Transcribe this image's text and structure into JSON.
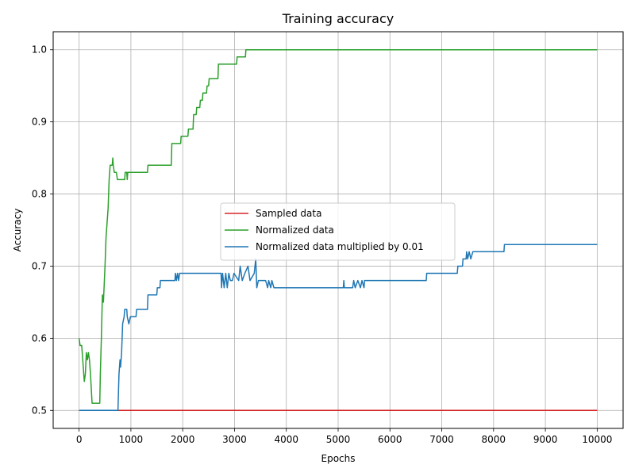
{
  "chart_data": {
    "type": "line",
    "title": "Training accuracy",
    "xlabel": "Epochs",
    "ylabel": "Accuracy",
    "xlim": [
      -500,
      10500
    ],
    "ylim": [
      0.475,
      1.025
    ],
    "xticks": [
      0,
      1000,
      2000,
      3000,
      4000,
      5000,
      6000,
      7000,
      8000,
      9000,
      10000
    ],
    "yticks": [
      0.5,
      0.6,
      0.7,
      0.8,
      0.9,
      1.0
    ],
    "xtick_labels": [
      "0",
      "1000",
      "2000",
      "3000",
      "4000",
      "5000",
      "6000",
      "7000",
      "8000",
      "9000",
      "10000"
    ],
    "ytick_labels": [
      "0.5",
      "0.6",
      "0.7",
      "0.8",
      "0.9",
      "1.0"
    ],
    "grid": true,
    "legend_position": "center",
    "series": [
      {
        "name": "Sampled data",
        "color": "#d62728",
        "points": [
          [
            0,
            0.5
          ],
          [
            10000,
            0.5
          ]
        ]
      },
      {
        "name": "Normalized data",
        "color": "#2ca02c",
        "points": [
          [
            0,
            0.6
          ],
          [
            20,
            0.59
          ],
          [
            50,
            0.59
          ],
          [
            60,
            0.58
          ],
          [
            80,
            0.56
          ],
          [
            100,
            0.54
          ],
          [
            120,
            0.55
          ],
          [
            140,
            0.58
          ],
          [
            160,
            0.57
          ],
          [
            180,
            0.58
          ],
          [
            200,
            0.57
          ],
          [
            220,
            0.55
          ],
          [
            250,
            0.51
          ],
          [
            300,
            0.51
          ],
          [
            400,
            0.51
          ],
          [
            410,
            0.55
          ],
          [
            430,
            0.6
          ],
          [
            450,
            0.66
          ],
          [
            470,
            0.65
          ],
          [
            500,
            0.7
          ],
          [
            520,
            0.74
          ],
          [
            540,
            0.76
          ],
          [
            560,
            0.78
          ],
          [
            580,
            0.82
          ],
          [
            600,
            0.84
          ],
          [
            640,
            0.84
          ],
          [
            650,
            0.85
          ],
          [
            660,
            0.84
          ],
          [
            680,
            0.83
          ],
          [
            720,
            0.83
          ],
          [
            740,
            0.82
          ],
          [
            880,
            0.82
          ],
          [
            890,
            0.83
          ],
          [
            920,
            0.83
          ],
          [
            930,
            0.82
          ],
          [
            940,
            0.83
          ],
          [
            1100,
            0.83
          ],
          [
            1320,
            0.83
          ],
          [
            1330,
            0.84
          ],
          [
            1780,
            0.84
          ],
          [
            1790,
            0.87
          ],
          [
            1960,
            0.87
          ],
          [
            1970,
            0.88
          ],
          [
            2100,
            0.88
          ],
          [
            2110,
            0.89
          ],
          [
            2200,
            0.89
          ],
          [
            2210,
            0.91
          ],
          [
            2260,
            0.91
          ],
          [
            2270,
            0.92
          ],
          [
            2330,
            0.92
          ],
          [
            2340,
            0.93
          ],
          [
            2380,
            0.93
          ],
          [
            2390,
            0.94
          ],
          [
            2460,
            0.94
          ],
          [
            2470,
            0.95
          ],
          [
            2500,
            0.95
          ],
          [
            2510,
            0.96
          ],
          [
            2680,
            0.96
          ],
          [
            2690,
            0.98
          ],
          [
            3040,
            0.98
          ],
          [
            3050,
            0.99
          ],
          [
            3210,
            0.99
          ],
          [
            3220,
            1.0
          ],
          [
            10000,
            1.0
          ]
        ]
      },
      {
        "name": "Normalized data multiplied by 0.01",
        "color": "#1f77b4",
        "points": [
          [
            0,
            0.5
          ],
          [
            750,
            0.5
          ],
          [
            770,
            0.55
          ],
          [
            790,
            0.57
          ],
          [
            800,
            0.56
          ],
          [
            820,
            0.58
          ],
          [
            840,
            0.62
          ],
          [
            870,
            0.63
          ],
          [
            880,
            0.64
          ],
          [
            920,
            0.64
          ],
          [
            930,
            0.63
          ],
          [
            960,
            0.62
          ],
          [
            990,
            0.63
          ],
          [
            1100,
            0.63
          ],
          [
            1110,
            0.64
          ],
          [
            1320,
            0.64
          ],
          [
            1330,
            0.66
          ],
          [
            1500,
            0.66
          ],
          [
            1510,
            0.67
          ],
          [
            1560,
            0.67
          ],
          [
            1570,
            0.68
          ],
          [
            1850,
            0.68
          ],
          [
            1860,
            0.69
          ],
          [
            1880,
            0.68
          ],
          [
            1900,
            0.69
          ],
          [
            1920,
            0.68
          ],
          [
            1940,
            0.69
          ],
          [
            2740,
            0.69
          ],
          [
            2750,
            0.67
          ],
          [
            2770,
            0.69
          ],
          [
            2800,
            0.67
          ],
          [
            2830,
            0.69
          ],
          [
            2860,
            0.67
          ],
          [
            2890,
            0.69
          ],
          [
            2920,
            0.68
          ],
          [
            2960,
            0.68
          ],
          [
            2990,
            0.69
          ],
          [
            3080,
            0.68
          ],
          [
            3110,
            0.7
          ],
          [
            3150,
            0.68
          ],
          [
            3200,
            0.69
          ],
          [
            3260,
            0.7
          ],
          [
            3300,
            0.68
          ],
          [
            3380,
            0.69
          ],
          [
            3410,
            0.71
          ],
          [
            3430,
            0.67
          ],
          [
            3460,
            0.68
          ],
          [
            3600,
            0.68
          ],
          [
            3640,
            0.67
          ],
          [
            3660,
            0.68
          ],
          [
            3700,
            0.67
          ],
          [
            3720,
            0.68
          ],
          [
            3760,
            0.67
          ],
          [
            5100,
            0.67
          ],
          [
            5110,
            0.68
          ],
          [
            5120,
            0.67
          ],
          [
            5280,
            0.67
          ],
          [
            5300,
            0.68
          ],
          [
            5330,
            0.67
          ],
          [
            5380,
            0.68
          ],
          [
            5430,
            0.67
          ],
          [
            5460,
            0.68
          ],
          [
            5500,
            0.67
          ],
          [
            5510,
            0.68
          ],
          [
            6700,
            0.68
          ],
          [
            6710,
            0.69
          ],
          [
            7300,
            0.69
          ],
          [
            7310,
            0.7
          ],
          [
            7400,
            0.7
          ],
          [
            7410,
            0.71
          ],
          [
            7470,
            0.71
          ],
          [
            7480,
            0.72
          ],
          [
            7500,
            0.71
          ],
          [
            7530,
            0.72
          ],
          [
            7560,
            0.71
          ],
          [
            7600,
            0.72
          ],
          [
            8200,
            0.72
          ],
          [
            8210,
            0.73
          ],
          [
            10000,
            0.73
          ]
        ]
      }
    ]
  }
}
